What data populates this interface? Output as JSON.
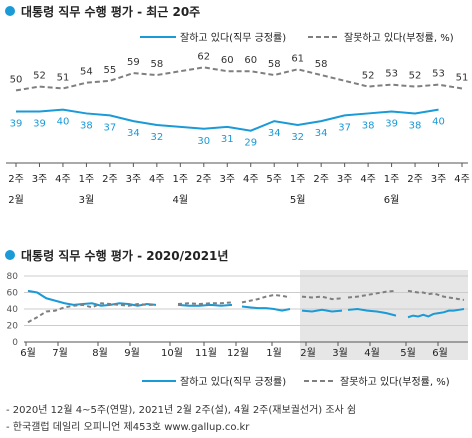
{
  "colors": {
    "approve": "#1a9ad6",
    "disapprove": "#7f7f7f",
    "bullet": "#1a9ad6",
    "text": "#222222",
    "shade": "#e6e6e6"
  },
  "chart_data": [
    {
      "type": "line",
      "title": "대통령 직무 수행 평가 - 최근 20주",
      "x": [
        "2주",
        "3주",
        "4주",
        "1주",
        "2주",
        "3주",
        "4주",
        "1주",
        "2주",
        "3주",
        "4주",
        "5주",
        "1주",
        "2주",
        "3주",
        "4주",
        "1주",
        "2주",
        "3주",
        "4주"
      ],
      "month_labels": [
        {
          "index": 0,
          "label": "2월"
        },
        {
          "index": 3,
          "label": "3월"
        },
        {
          "index": 7,
          "label": "4월"
        },
        {
          "index": 12,
          "label": "5월"
        },
        {
          "index": 16,
          "label": "6월"
        }
      ],
      "series": [
        {
          "name": "잘못하고 있다(부정률, %)",
          "key": "disapprove",
          "style": "dashed",
          "values": [
            50,
            52,
            51,
            54,
            55,
            59,
            58,
            null,
            62,
            60,
            60,
            58,
            61,
            58,
            null,
            52,
            53,
            52,
            53,
            51
          ]
        },
        {
          "name": "잘하고 있다(직무 긍정률)",
          "key": "approve",
          "style": "solid",
          "values": [
            39,
            39,
            40,
            38,
            37,
            34,
            32,
            null,
            30,
            31,
            29,
            34,
            32,
            34,
            37,
            38,
            39,
            38,
            40,
            null
          ]
        }
      ],
      "ylim": [
        20,
        70
      ],
      "grid": false,
      "legend": "top-right"
    },
    {
      "type": "line",
      "title": "대통령 직무 수행 평가 - 2020/2021년",
      "x_labels": [
        "6월",
        "7월",
        "8월",
        "9월",
        "10월",
        "11월",
        "12월",
        "1월",
        "2월",
        "3월",
        "4월",
        "5월",
        "6월"
      ],
      "y_ticks": [
        0,
        20,
        40,
        60,
        80
      ],
      "ylim": [
        0,
        80
      ],
      "shaded_period": "2021년",
      "series": [
        {
          "name": "잘하고 있다(직무 긍정률)",
          "key": "approve",
          "style": "solid",
          "segments": [
            [
              62,
              60,
              53,
              50,
              47,
              45,
              46,
              47,
              44,
              45,
              47,
              46,
              44,
              46,
              45
            ],
            [
              45,
              44,
              44,
              45,
              44,
              45
            ],
            [
              43,
              42,
              41,
              41,
              40,
              38,
              40
            ],
            [
              38,
              37,
              39,
              37,
              38
            ],
            [
              39,
              40,
              38,
              37,
              35,
              32
            ],
            [
              30,
              32,
              31,
              33,
              31,
              34,
              35,
              36,
              38,
              38,
              39,
              40
            ]
          ]
        },
        {
          "name": "잘못하고 있다(부정률, %)",
          "key": "disapprove",
          "style": "dashed",
          "segments": [
            [
              24,
              30,
              37,
              38,
              42,
              44,
              45,
              42,
              47,
              46,
              45,
              44,
              46,
              45,
              45
            ],
            [
              46,
              47,
              46,
              47,
              47,
              48
            ],
            [
              48,
              50,
              52,
              55,
              57,
              56,
              54
            ],
            [
              55,
              54,
              55,
              52,
              53
            ],
            [
              54,
              55,
              57,
              59,
              61,
              62
            ],
            [
              62,
              61,
              60,
              60,
              58,
              59,
              57,
              55,
              54,
              53,
              52,
              51
            ]
          ]
        }
      ],
      "grid": true,
      "legend": "bottom"
    }
  ],
  "legend": {
    "approve": "잘하고 있다(직무 긍정률)",
    "disapprove": "잘못하고 있다(부정률, %)"
  },
  "notes": [
    "- 2020년 12월 4~5주(연말), 2021년 2월 2주(설), 4월 2주(재보궐선거) 조사 쉼",
    "- 한국갤럽 데일리 오피니언 제453호 www.gallup.co.kr"
  ]
}
